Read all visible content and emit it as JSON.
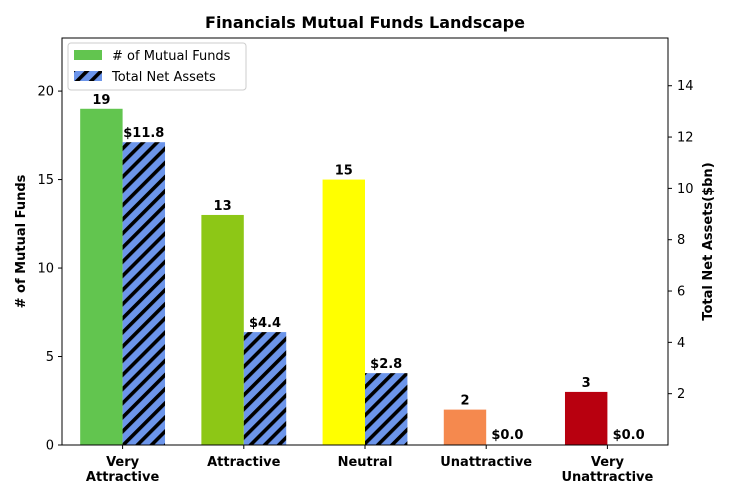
{
  "chart_data": {
    "type": "bar",
    "title": "Financials Mutual Funds Landscape",
    "categories": [
      [
        "Very",
        "Attractive"
      ],
      [
        "Attractive"
      ],
      [
        "Neutral"
      ],
      [
        "Unattractive"
      ],
      [
        "Very",
        "Unattractive"
      ]
    ],
    "series": [
      {
        "name": "# of Mutual Funds",
        "axis": "left",
        "values": [
          19,
          13,
          15,
          2,
          3
        ],
        "labels": [
          "19",
          "13",
          "15",
          "2",
          "3"
        ],
        "colors": [
          "#62c54f",
          "#8dc716",
          "#ffff00",
          "#f5894e",
          "#b8000f"
        ]
      },
      {
        "name": "Total Net Assets",
        "axis": "right",
        "values": [
          11.8,
          4.4,
          2.8,
          0.0,
          0.0
        ],
        "labels": [
          "$11.8",
          "$4.4",
          "$2.8",
          "$0.0",
          "$0.0"
        ],
        "color": "#6c95ea",
        "hatch": "diagonal"
      }
    ],
    "ylabel": "# of Mutual Funds",
    "ylim": [
      0,
      23
    ],
    "yticks": [
      0,
      5,
      10,
      15,
      20
    ],
    "y2label": "Total Net Assets($bn)",
    "y2lim": [
      0,
      15.86
    ],
    "y2ticks": [
      2,
      4,
      6,
      8,
      10,
      12,
      14
    ],
    "legend": "top-left",
    "grid": false
  }
}
